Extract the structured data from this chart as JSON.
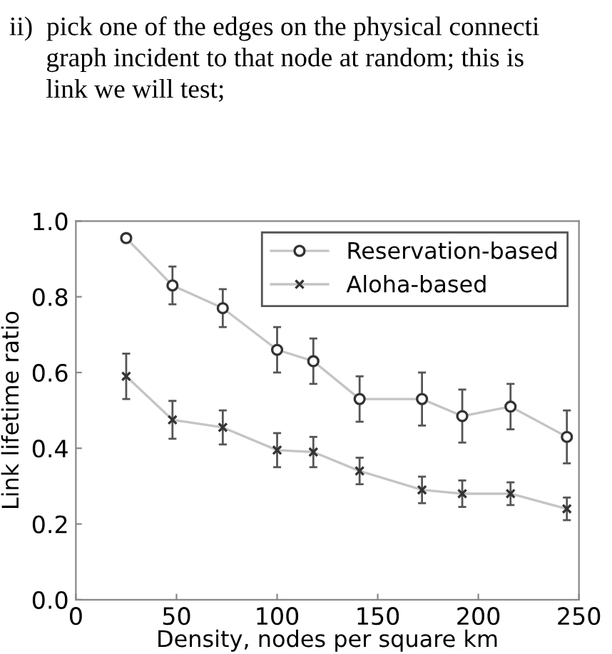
{
  "chart_data": {
    "type": "line",
    "annotations": [
      "ii)  pick one of the edges on the physical connecti",
      "graph incident to that node at random; this is",
      "link we will test;"
    ],
    "xlabel": "Density, nodes per square km",
    "ylabel": "Link lifetime ratio",
    "x": [
      25,
      48,
      73,
      100,
      118,
      141,
      172,
      192,
      216,
      244
    ],
    "series": [
      {
        "name": "Reservation-based",
        "color": "#c4c4c4",
        "marker": "circle",
        "values": [
          0.955,
          0.83,
          0.77,
          0.66,
          0.63,
          0.53,
          0.53,
          0.485,
          0.51,
          0.43
        ],
        "errors": [
          0.01,
          0.05,
          0.05,
          0.06,
          0.06,
          0.06,
          0.07,
          0.07,
          0.06,
          0.07
        ]
      },
      {
        "name": "Aloha-based",
        "color": "#c4c4c4",
        "marker": "cross",
        "values": [
          0.59,
          0.475,
          0.455,
          0.395,
          0.39,
          0.34,
          0.29,
          0.28,
          0.28,
          0.24
        ],
        "errors": [
          0.06,
          0.05,
          0.045,
          0.045,
          0.04,
          0.035,
          0.035,
          0.035,
          0.03,
          0.03
        ]
      }
    ],
    "xlim": [
      0,
      250
    ],
    "xticks": [
      0,
      50,
      100,
      150,
      200,
      250
    ],
    "ylim": [
      0,
      1.0
    ],
    "yticks": [
      {
        "value": 0,
        "label": "0.0"
      },
      {
        "value": 0.2,
        "label": "0.2"
      },
      {
        "value": 0.4,
        "label": "0.4"
      },
      {
        "value": 0.6,
        "label": "0.6"
      },
      {
        "value": 0.8,
        "label": "0.8"
      },
      {
        "value": 1.0,
        "label": "1.0"
      }
    ],
    "grid": false,
    "legend": "top right"
  }
}
